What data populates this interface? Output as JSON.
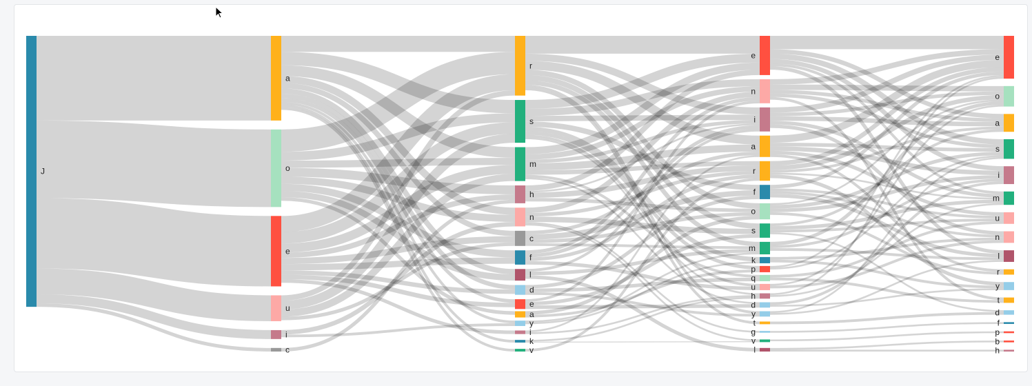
{
  "chart_data": {
    "type": "sankey",
    "link_color": "#d3d3d3",
    "nodes": [
      {
        "id": "J1",
        "label": "J",
        "column": 0,
        "color": "#2a8aab"
      },
      {
        "id": "a2",
        "label": "a",
        "column": 1,
        "color": "#ffb11b"
      },
      {
        "id": "o2",
        "label": "o",
        "column": 1,
        "color": "#a6e1bf"
      },
      {
        "id": "e2",
        "label": "e",
        "column": 1,
        "color": "#ff5040"
      },
      {
        "id": "u2",
        "label": "u",
        "column": 1,
        "color": "#fda9a6"
      },
      {
        "id": "i2",
        "label": "i",
        "column": 1,
        "color": "#c57a8b"
      },
      {
        "id": "c2",
        "label": "c",
        "column": 1,
        "color": "#999999"
      },
      {
        "id": "r3",
        "label": "r",
        "column": 2,
        "color": "#ffb11b"
      },
      {
        "id": "s3",
        "label": "s",
        "column": 2,
        "color": "#22b07d"
      },
      {
        "id": "m3",
        "label": "m",
        "column": 2,
        "color": "#22b07d"
      },
      {
        "id": "h3",
        "label": "h",
        "column": 2,
        "color": "#c57a8b"
      },
      {
        "id": "n3",
        "label": "n",
        "column": 2,
        "color": "#fda9a6"
      },
      {
        "id": "c3",
        "label": "c",
        "column": 2,
        "color": "#999999"
      },
      {
        "id": "f3",
        "label": "f",
        "column": 2,
        "color": "#2a8aab"
      },
      {
        "id": "l3",
        "label": "l",
        "column": 2,
        "color": "#b0546a"
      },
      {
        "id": "d3",
        "label": "d",
        "column": 2,
        "color": "#94cde8"
      },
      {
        "id": "e3",
        "label": "e",
        "column": 2,
        "color": "#ff5040"
      },
      {
        "id": "a3",
        "label": "a",
        "column": 2,
        "color": "#ffb11b"
      },
      {
        "id": "y3",
        "label": "y",
        "column": 2,
        "color": "#94cde8"
      },
      {
        "id": "i3",
        "label": "i",
        "column": 2,
        "color": "#c57a8b"
      },
      {
        "id": "k3",
        "label": "k",
        "column": 2,
        "color": "#2a8aab"
      },
      {
        "id": "v3",
        "label": "v",
        "column": 2,
        "color": "#22b07d"
      },
      {
        "id": "e4",
        "label": "e",
        "column": 3,
        "color": "#ff5040"
      },
      {
        "id": "n4",
        "label": "n",
        "column": 3,
        "color": "#fda9a6"
      },
      {
        "id": "i4",
        "label": "i",
        "column": 3,
        "color": "#c57a8b"
      },
      {
        "id": "a4",
        "label": "a",
        "column": 3,
        "color": "#ffb11b"
      },
      {
        "id": "r4",
        "label": "r",
        "column": 3,
        "color": "#ffb11b"
      },
      {
        "id": "f4",
        "label": "f",
        "column": 3,
        "color": "#2a8aab"
      },
      {
        "id": "o4",
        "label": "o",
        "column": 3,
        "color": "#a6e1bf"
      },
      {
        "id": "s4",
        "label": "s",
        "column": 3,
        "color": "#22b07d"
      },
      {
        "id": "m4",
        "label": "m",
        "column": 3,
        "color": "#22b07d"
      },
      {
        "id": "k4",
        "label": "k",
        "column": 3,
        "color": "#2a8aab"
      },
      {
        "id": "p4",
        "label": "p",
        "column": 3,
        "color": "#ff5040"
      },
      {
        "id": "q4",
        "label": "q",
        "column": 3,
        "color": "#a6e1bf"
      },
      {
        "id": "u4",
        "label": "u",
        "column": 3,
        "color": "#fda9a6"
      },
      {
        "id": "h4",
        "label": "h",
        "column": 3,
        "color": "#c57a8b"
      },
      {
        "id": "d4",
        "label": "d",
        "column": 3,
        "color": "#94cde8"
      },
      {
        "id": "y4",
        "label": "y",
        "column": 3,
        "color": "#94cde8"
      },
      {
        "id": "t4",
        "label": "t",
        "column": 3,
        "color": "#ffb11b"
      },
      {
        "id": "g4",
        "label": "g",
        "column": 3,
        "color": "#94cde8"
      },
      {
        "id": "v4",
        "label": "v",
        "column": 3,
        "color": "#22b07d"
      },
      {
        "id": "l4",
        "label": "l",
        "column": 3,
        "color": "#b0546a"
      },
      {
        "id": "e5",
        "label": "e",
        "column": 4,
        "color": "#ff5040"
      },
      {
        "id": "o5",
        "label": "o",
        "column": 4,
        "color": "#a6e1bf"
      },
      {
        "id": "a5",
        "label": "a",
        "column": 4,
        "color": "#ffb11b"
      },
      {
        "id": "s5",
        "label": "s",
        "column": 4,
        "color": "#22b07d"
      },
      {
        "id": "i5",
        "label": "i",
        "column": 4,
        "color": "#c57a8b"
      },
      {
        "id": "m5",
        "label": "m",
        "column": 4,
        "color": "#22b07d"
      },
      {
        "id": "u5",
        "label": "u",
        "column": 4,
        "color": "#fda9a6"
      },
      {
        "id": "n5",
        "label": "n",
        "column": 4,
        "color": "#fda9a6"
      },
      {
        "id": "l5",
        "label": "l",
        "column": 4,
        "color": "#b0546a"
      },
      {
        "id": "r5",
        "label": "r",
        "column": 4,
        "color": "#ffb11b"
      },
      {
        "id": "y5",
        "label": "y",
        "column": 4,
        "color": "#94cde8"
      },
      {
        "id": "t5",
        "label": "t",
        "column": 4,
        "color": "#ffb11b"
      },
      {
        "id": "d5",
        "label": "d",
        "column": 4,
        "color": "#94cde8"
      },
      {
        "id": "f5",
        "label": "f",
        "column": 4,
        "color": "#2a8aab"
      },
      {
        "id": "p5",
        "label": "p",
        "column": 4,
        "color": "#ff5040"
      },
      {
        "id": "b5",
        "label": "b",
        "column": 4,
        "color": "#ff5040"
      },
      {
        "id": "h5",
        "label": "h",
        "column": 4,
        "color": "#c57a8b"
      }
    ],
    "links": [
      [
        "J1",
        "a2",
        95
      ],
      [
        "J1",
        "o2",
        87
      ],
      [
        "J1",
        "e2",
        79
      ],
      [
        "J1",
        "u2",
        29
      ],
      [
        "J1",
        "i2",
        10
      ],
      [
        "J1",
        "c2",
        4
      ],
      [
        "a2",
        "r3",
        18
      ],
      [
        "a2",
        "s3",
        15
      ],
      [
        "a2",
        "m3",
        12
      ],
      [
        "a2",
        "n3",
        8
      ],
      [
        "a2",
        "c3",
        6
      ],
      [
        "a2",
        "l3",
        6
      ],
      [
        "a2",
        "d3",
        5
      ],
      [
        "a2",
        "e3",
        4
      ],
      [
        "a2",
        "y3",
        3
      ],
      [
        "a2",
        "k3",
        3
      ],
      [
        "a2",
        "v3",
        3
      ],
      [
        "o2",
        "r3",
        25
      ],
      [
        "o2",
        "s3",
        10
      ],
      [
        "o2",
        "m3",
        8
      ],
      [
        "o2",
        "h3",
        10
      ],
      [
        "o2",
        "n3",
        8
      ],
      [
        "o2",
        "f3",
        8
      ],
      [
        "o2",
        "l3",
        7
      ],
      [
        "o2",
        "a3",
        4
      ],
      [
        "e2",
        "r3",
        18
      ],
      [
        "e2",
        "s3",
        13
      ],
      [
        "e2",
        "m3",
        10
      ],
      [
        "e2",
        "h3",
        6
      ],
      [
        "e2",
        "c3",
        7
      ],
      [
        "e2",
        "f3",
        7
      ],
      [
        "e2",
        "d3",
        5
      ],
      [
        "e2",
        "e3",
        5
      ],
      [
        "e2",
        "i3",
        4
      ],
      [
        "u2",
        "r3",
        6
      ],
      [
        "u2",
        "s3",
        10
      ],
      [
        "u2",
        "m3",
        8
      ],
      [
        "u2",
        "c3",
        4
      ],
      [
        "i2",
        "n3",
        5
      ],
      [
        "i2",
        "y3",
        3
      ],
      [
        "c2",
        "h3",
        4
      ],
      [
        "r3",
        "e4",
        20
      ],
      [
        "r3",
        "a4",
        10
      ],
      [
        "r3",
        "i4",
        8
      ],
      [
        "r3",
        "o4",
        6
      ],
      [
        "r3",
        "s4",
        6
      ],
      [
        "r3",
        "m4",
        5
      ],
      [
        "r3",
        "t4",
        3
      ],
      [
        "r3",
        "y4",
        3
      ],
      [
        "s3",
        "e4",
        10
      ],
      [
        "s3",
        "n4",
        8
      ],
      [
        "s3",
        "i4",
        6
      ],
      [
        "s3",
        "f4",
        6
      ],
      [
        "s3",
        "k4",
        5
      ],
      [
        "s3",
        "p4",
        4
      ],
      [
        "s3",
        "u4",
        3
      ],
      [
        "s3",
        "h4",
        2
      ],
      [
        "m3",
        "e4",
        8
      ],
      [
        "m3",
        "a4",
        8
      ],
      [
        "m3",
        "n4",
        6
      ],
      [
        "m3",
        "i4",
        4
      ],
      [
        "m3",
        "r4",
        5
      ],
      [
        "m3",
        "q4",
        3
      ],
      [
        "m3",
        "d4",
        2
      ],
      [
        "h3",
        "e4",
        6
      ],
      [
        "h3",
        "r4",
        6
      ],
      [
        "h3",
        "o4",
        4
      ],
      [
        "h3",
        "i4",
        2
      ],
      [
        "n3",
        "n4",
        6
      ],
      [
        "n3",
        "r4",
        4
      ],
      [
        "n3",
        "s4",
        6
      ],
      [
        "n3",
        "g4",
        2
      ],
      [
        "n3",
        "v4",
        2
      ],
      [
        "c3",
        "a4",
        4
      ],
      [
        "c3",
        "f4",
        6
      ],
      [
        "c3",
        "o4",
        4
      ],
      [
        "c3",
        "m4",
        3
      ],
      [
        "f3",
        "n4",
        4
      ],
      [
        "f3",
        "i4",
        4
      ],
      [
        "f3",
        "r4",
        4
      ],
      [
        "f3",
        "u4",
        4
      ],
      [
        "l3",
        "i4",
        3
      ],
      [
        "l3",
        "m4",
        4
      ],
      [
        "l3",
        "l4",
        4
      ],
      [
        "d3",
        "f4",
        4
      ],
      [
        "d3",
        "q4",
        4
      ],
      [
        "d3",
        "y4",
        3
      ],
      [
        "e3",
        "n4",
        3
      ],
      [
        "e3",
        "s4",
        4
      ],
      [
        "e3",
        "d4",
        4
      ],
      [
        "a3",
        "o4",
        4
      ],
      [
        "a3",
        "p4",
        3
      ],
      [
        "y3",
        "m4",
        2
      ],
      [
        "y3",
        "k4",
        2
      ],
      [
        "i3",
        "a4",
        2
      ],
      [
        "i3",
        "h4",
        2
      ],
      [
        "k3",
        "h4",
        2
      ],
      [
        "k3",
        "v4",
        1
      ],
      [
        "v3",
        "r4",
        3
      ],
      [
        "e4",
        "e5",
        15
      ],
      [
        "e4",
        "s5",
        6
      ],
      [
        "e4",
        "a5",
        5
      ],
      [
        "e4",
        "i5",
        5
      ],
      [
        "e4",
        "l5",
        4
      ],
      [
        "e4",
        "m5",
        3
      ],
      [
        "n4",
        "o5",
        6
      ],
      [
        "n4",
        "e5",
        6
      ],
      [
        "n4",
        "a5",
        4
      ],
      [
        "n4",
        "s5",
        4
      ],
      [
        "n4",
        "t5",
        3
      ],
      [
        "i4",
        "e5",
        6
      ],
      [
        "i4",
        "a5",
        5
      ],
      [
        "i4",
        "o5",
        4
      ],
      [
        "i4",
        "m5",
        4
      ],
      [
        "i4",
        "n5",
        4
      ],
      [
        "a4",
        "e5",
        8
      ],
      [
        "a4",
        "i5",
        5
      ],
      [
        "a4",
        "u5",
        4
      ],
      [
        "a4",
        "s5",
        4
      ],
      [
        "a4",
        "r5",
        3
      ],
      [
        "r4",
        "e5",
        5
      ],
      [
        "r4",
        "o5",
        5
      ],
      [
        "r4",
        "a5",
        3
      ],
      [
        "r4",
        "y5",
        4
      ],
      [
        "r4",
        "m5",
        2
      ],
      [
        "f4",
        "e5",
        4
      ],
      [
        "f4",
        "l5",
        4
      ],
      [
        "f4",
        "n5",
        3
      ],
      [
        "f4",
        "u5",
        3
      ],
      [
        "o4",
        "i5",
        4
      ],
      [
        "o4",
        "s5",
        4
      ],
      [
        "o4",
        "r5",
        3
      ],
      [
        "o4",
        "o5",
        2
      ],
      [
        "s4",
        "a5",
        3
      ],
      [
        "s4",
        "m5",
        4
      ],
      [
        "s4",
        "u5",
        3
      ],
      [
        "s4",
        "d5",
        2
      ],
      [
        "m4",
        "o5",
        4
      ],
      [
        "m4",
        "i5",
        3
      ],
      [
        "m4",
        "l5",
        3
      ],
      [
        "k4",
        "n5",
        3
      ],
      [
        "k4",
        "y5",
        3
      ],
      [
        "p4",
        "s5",
        2
      ],
      [
        "p4",
        "e5",
        2
      ],
      [
        "q4",
        "u5",
        3
      ],
      [
        "q4",
        "t5",
        3
      ],
      [
        "u4",
        "o5",
        2
      ],
      [
        "u4",
        "n5",
        3
      ],
      [
        "h4",
        "e5",
        2
      ],
      [
        "h4",
        "m5",
        2
      ],
      [
        "d4",
        "i5",
        3
      ],
      [
        "d4",
        "y5",
        2
      ],
      [
        "y4",
        "s5",
        2
      ],
      [
        "y4",
        "l5",
        2
      ],
      [
        "t4",
        "d5",
        3
      ],
      [
        "g4",
        "f5",
        2
      ],
      [
        "v4",
        "p5",
        2
      ],
      [
        "l4",
        "b5",
        2
      ],
      [
        "l4",
        "h5",
        2
      ]
    ]
  }
}
